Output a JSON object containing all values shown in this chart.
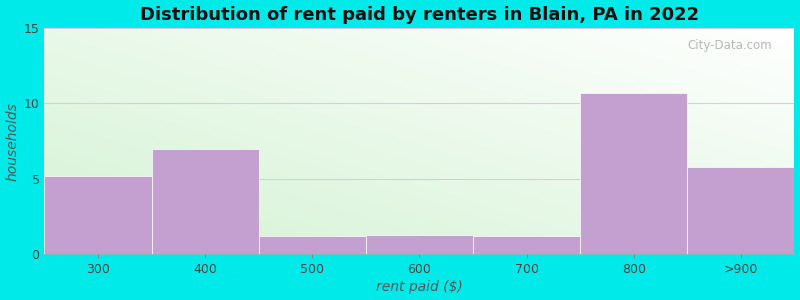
{
  "categories": [
    "300",
    "400",
    "500",
    "600",
    "700",
    "800",
    ">900"
  ],
  "values": [
    5.2,
    7.0,
    1.2,
    1.3,
    1.2,
    10.7,
    5.8
  ],
  "bar_color": "#c4a0d0",
  "title": "Distribution of rent paid by renters in Blain, PA in 2022",
  "xlabel": "rent paid ($)",
  "ylabel": "households",
  "ylim": [
    0,
    15
  ],
  "yticks": [
    0,
    5,
    10,
    15
  ],
  "background_outer": "#00eaea",
  "background_inner_topleft": "#d4f0d4",
  "background_inner_bottomright": "#f5fff5",
  "grid_color": "#e0c8e0",
  "title_fontsize": 13,
  "axis_label_fontsize": 10,
  "tick_fontsize": 9,
  "watermark_text": "City-Data.com"
}
